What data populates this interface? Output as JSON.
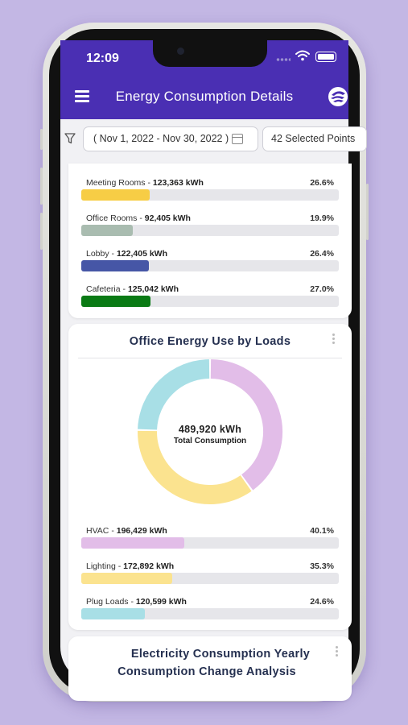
{
  "status": {
    "time": "12:09"
  },
  "header": {
    "title": "Energy Consumption Details"
  },
  "filters": {
    "date_range": "( Nov 1, 2022 - Nov 30, 2022 )",
    "points": "42 Selected Points"
  },
  "rooms": [
    {
      "name": "Meeting Rooms",
      "value": "123,363 kWh",
      "pct": "26.6%",
      "fraction": 0.266,
      "color": "#f7cd45"
    },
    {
      "name": "Office Rooms",
      "value": "92,405 kWh",
      "pct": "19.9%",
      "fraction": 0.199,
      "color": "#a9bcb0"
    },
    {
      "name": "Lobby",
      "value": "122,405 kWh",
      "pct": "26.4%",
      "fraction": 0.264,
      "color": "#4656a6"
    },
    {
      "name": "Cafeteria",
      "value": "125,042 kWh",
      "pct": "27.0%",
      "fraction": 0.27,
      "color": "#0a7a14"
    }
  ],
  "loads_card": {
    "title": "Office Energy Use by Loads",
    "total_value": "489,920  kWh",
    "total_label": "Total Consumption",
    "loads": [
      {
        "name": "HVAC",
        "value": "196,429 kWh",
        "pct": "40.1%",
        "fraction": 0.401,
        "color": "#e2bde8"
      },
      {
        "name": "Lighting",
        "value": "172,892 kWh",
        "pct": "35.3%",
        "fraction": 0.353,
        "color": "#fbe38f"
      },
      {
        "name": "Plug Loads",
        "value": "120,599 kWh",
        "pct": "24.6%",
        "fraction": 0.246,
        "color": "#a8dfe6"
      }
    ]
  },
  "yearly_card": {
    "title_line1": "Electricity Consumption Yearly",
    "title_line2": "Consumption Change Analysis"
  }
}
